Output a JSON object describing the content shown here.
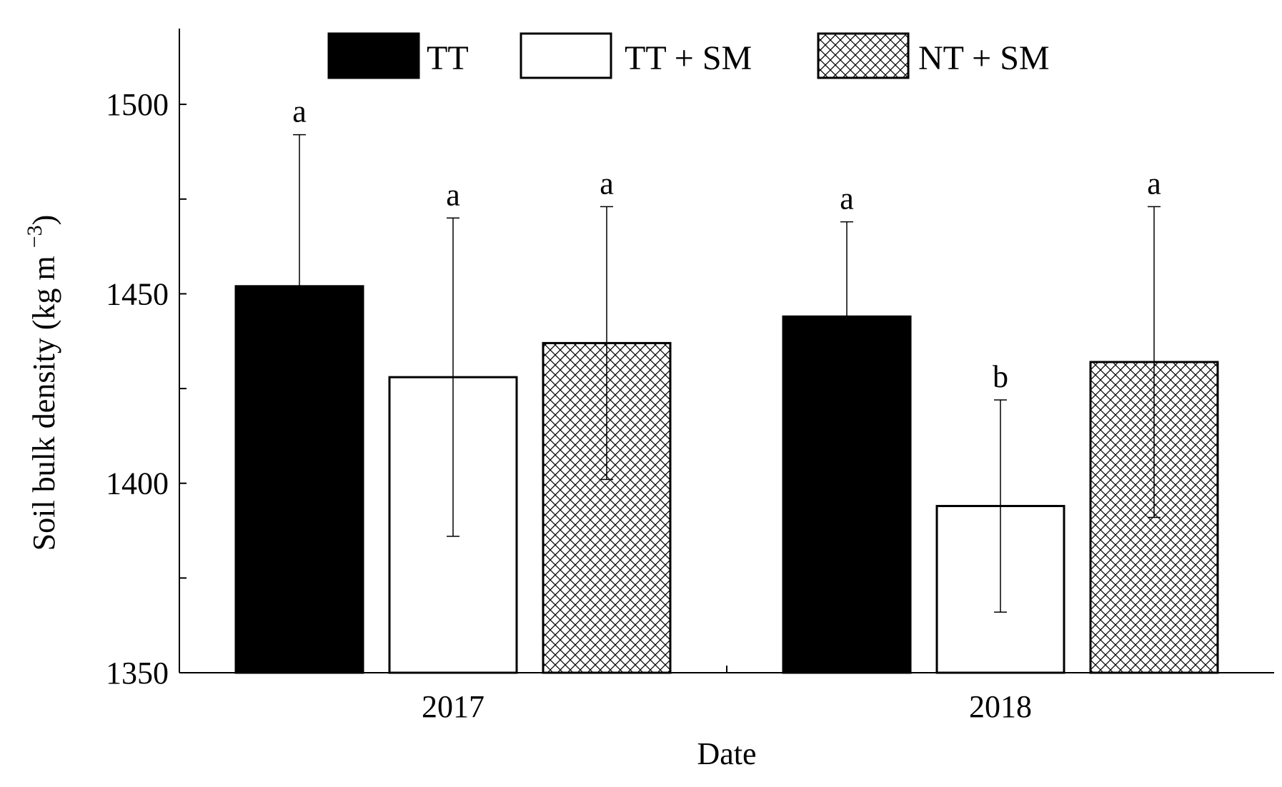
{
  "chart_data": {
    "type": "bar",
    "title": "",
    "xlabel": "Date",
    "ylabel": "Soil bulk density (kg m",
    "ylabel_sup": "−3",
    "ylabel_close": ")",
    "ylim": [
      1350,
      1520
    ],
    "yticks": [
      1350,
      1400,
      1450,
      1500
    ],
    "categories": [
      "2017",
      "2018"
    ],
    "series": [
      {
        "name": "TT",
        "fill": "solid",
        "values": [
          1452,
          1444
        ],
        "errors": [
          40,
          25
        ],
        "letters": [
          "a",
          "a"
        ]
      },
      {
        "name": "TT + SM",
        "fill": "open",
        "values": [
          1428,
          1394
        ],
        "errors": [
          42,
          28
        ],
        "letters": [
          "a",
          "b"
        ]
      },
      {
        "name": "NT + SM",
        "fill": "crosshatch",
        "values": [
          1437,
          1432
        ],
        "errors": [
          36,
          41
        ],
        "letters": [
          "a",
          "a"
        ]
      }
    ],
    "legend_position": "top"
  }
}
